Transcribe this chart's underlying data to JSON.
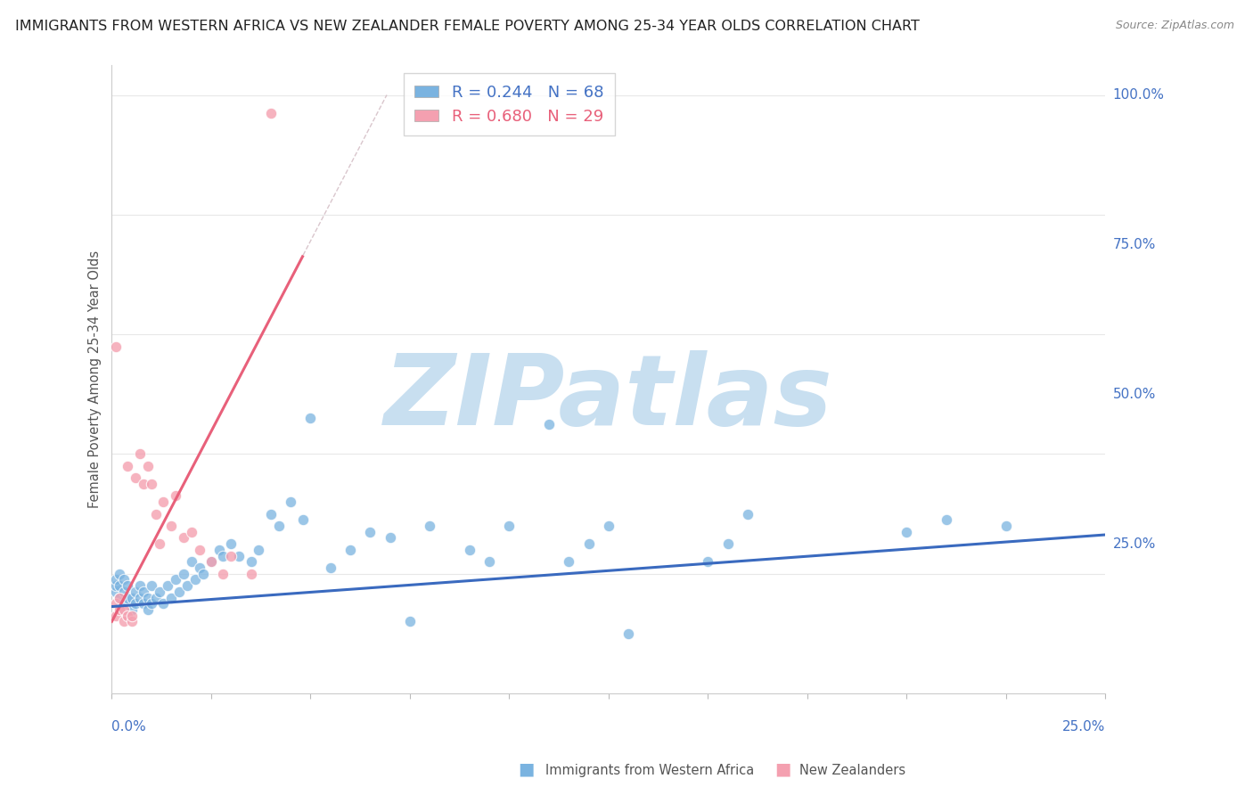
{
  "title": "IMMIGRANTS FROM WESTERN AFRICA VS NEW ZEALANDER FEMALE POVERTY AMONG 25-34 YEAR OLDS CORRELATION CHART",
  "source": "Source: ZipAtlas.com",
  "ylabel": "Female Poverty Among 25-34 Year Olds",
  "ytick_labels": [
    "25.0%",
    "50.0%",
    "75.0%",
    "100.0%"
  ],
  "ytick_values": [
    0.25,
    0.5,
    0.75,
    1.0
  ],
  "right_ytick_labels": [
    "25.0%",
    "50.0%",
    "75.0%",
    "100.0%"
  ],
  "xlim": [
    0.0,
    0.25
  ],
  "ylim": [
    0.0,
    1.05
  ],
  "blue_color": "#7ab3e0",
  "pink_color": "#f4a0b0",
  "blue_line_color": "#3a6abf",
  "pink_line_color": "#e8607a",
  "dashed_line_color": "#d0b8c0",
  "watermark": "ZIPatlas",
  "watermark_color": "#c8dff0",
  "background_color": "#ffffff",
  "grid_color": "#e8e8e8",
  "blue_line_x": [
    0.0,
    0.25
  ],
  "blue_line_y": [
    0.145,
    0.265
  ],
  "pink_line_x": [
    0.0,
    0.048
  ],
  "pink_line_y": [
    0.12,
    0.73
  ],
  "dashed_line_x": [
    0.0,
    0.25
  ],
  "dashed_line_y": [
    0.12,
    3.3
  ],
  "blue_scatter_x": [
    0.001,
    0.001,
    0.001,
    0.002,
    0.002,
    0.002,
    0.003,
    0.003,
    0.003,
    0.004,
    0.004,
    0.005,
    0.005,
    0.006,
    0.006,
    0.007,
    0.007,
    0.008,
    0.008,
    0.009,
    0.009,
    0.01,
    0.01,
    0.011,
    0.012,
    0.013,
    0.014,
    0.015,
    0.016,
    0.017,
    0.018,
    0.019,
    0.02,
    0.021,
    0.022,
    0.023,
    0.025,
    0.027,
    0.028,
    0.03,
    0.032,
    0.035,
    0.037,
    0.04,
    0.042,
    0.045,
    0.048,
    0.05,
    0.055,
    0.06,
    0.065,
    0.07,
    0.075,
    0.08,
    0.09,
    0.095,
    0.1,
    0.11,
    0.115,
    0.12,
    0.125,
    0.13,
    0.15,
    0.155,
    0.16,
    0.2,
    0.21,
    0.225
  ],
  "blue_scatter_y": [
    0.17,
    0.18,
    0.19,
    0.16,
    0.18,
    0.2,
    0.15,
    0.17,
    0.19,
    0.16,
    0.18,
    0.14,
    0.16,
    0.15,
    0.17,
    0.16,
    0.18,
    0.15,
    0.17,
    0.14,
    0.16,
    0.15,
    0.18,
    0.16,
    0.17,
    0.15,
    0.18,
    0.16,
    0.19,
    0.17,
    0.2,
    0.18,
    0.22,
    0.19,
    0.21,
    0.2,
    0.22,
    0.24,
    0.23,
    0.25,
    0.23,
    0.22,
    0.24,
    0.3,
    0.28,
    0.32,
    0.29,
    0.46,
    0.21,
    0.24,
    0.27,
    0.26,
    0.12,
    0.28,
    0.24,
    0.22,
    0.28,
    0.45,
    0.22,
    0.25,
    0.28,
    0.1,
    0.22,
    0.25,
    0.3,
    0.27,
    0.29,
    0.28
  ],
  "pink_scatter_x": [
    0.001,
    0.001,
    0.001,
    0.002,
    0.002,
    0.003,
    0.003,
    0.004,
    0.004,
    0.005,
    0.005,
    0.006,
    0.007,
    0.008,
    0.009,
    0.01,
    0.011,
    0.012,
    0.013,
    0.015,
    0.016,
    0.018,
    0.02,
    0.022,
    0.025,
    0.028,
    0.03,
    0.035,
    0.04
  ],
  "pink_scatter_y": [
    0.13,
    0.15,
    0.58,
    0.14,
    0.16,
    0.12,
    0.14,
    0.13,
    0.38,
    0.12,
    0.13,
    0.36,
    0.4,
    0.35,
    0.38,
    0.35,
    0.3,
    0.25,
    0.32,
    0.28,
    0.33,
    0.26,
    0.27,
    0.24,
    0.22,
    0.2,
    0.23,
    0.2,
    0.97
  ]
}
